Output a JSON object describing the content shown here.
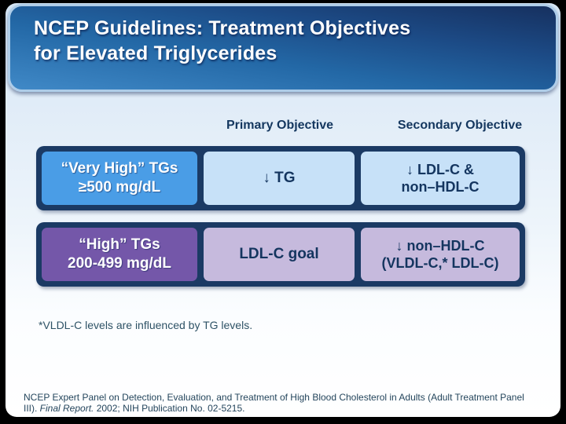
{
  "slide": {
    "title_line1": "NCEP Guidelines: Treatment Objectives",
    "title_line2": "for Elevated Triglycerides"
  },
  "table": {
    "headers": [
      "Primary Objective",
      "Secondary Objective"
    ],
    "rows": [
      {
        "category_line1": "“Very High” TGs",
        "category_line2": "≥500 mg/dL",
        "category_bg": "#4a9de6",
        "light_bg": "#c7e1f8",
        "primary": "↓ TG",
        "secondary_line1": "↓ LDL-C &",
        "secondary_line2": "non–HDL-C"
      },
      {
        "category_line1": "“High” TGs",
        "category_line2": "200-499 mg/dL",
        "category_bg": "#7457a9",
        "light_bg": "#c6badd",
        "primary": "LDL-C goal",
        "secondary_line1": "↓ non–HDL-C",
        "secondary_line2": "(VLDL-C,* LDL-C)"
      }
    ]
  },
  "footnote": "*VLDL-C levels are influenced by TG levels.",
  "citation": {
    "part1": "NCEP Expert Panel on Detection, Evaluation, and Treatment of High Blood Cholesterol in Adults (Adult Treatment Panel III). ",
    "italic": "Final Report.",
    "part2": " 2002; NIH Publication No. 02-5215."
  },
  "colors": {
    "slide_border": "#000000",
    "title_gradient_start": "#4089c7",
    "title_gradient_end": "#16305f",
    "title_border": "#aecde9",
    "row_frame": "#1b3a64",
    "header_text": "#14375f",
    "cell_text_dark": "#14355f",
    "very_high_cell": "#4a9de6",
    "high_cell": "#7457a9",
    "light_blue_cell": "#c7e1f8",
    "light_lavender_cell": "#c6badd",
    "footnote_text": "#2e5265",
    "citation_text": "#24455c"
  }
}
